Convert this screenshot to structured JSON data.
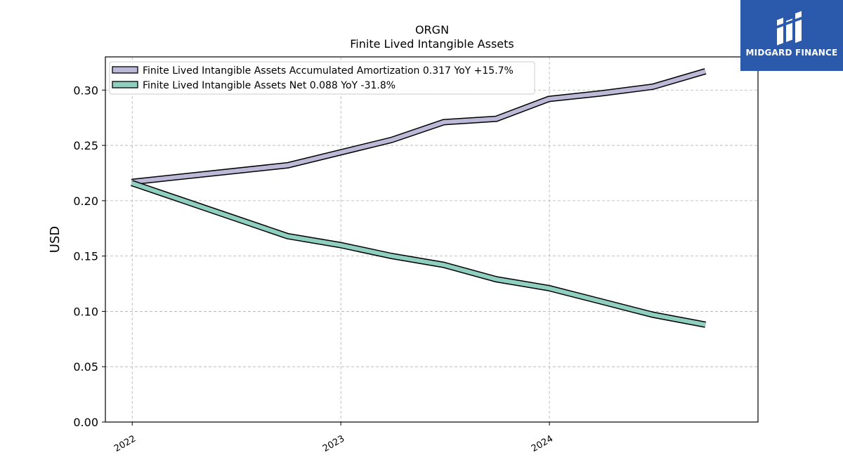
{
  "chart_data": {
    "type": "line",
    "title": "ORGN",
    "subtitle": "Finite Lived Intangible Assets",
    "ylabel": "USD",
    "xlabel": "",
    "ylim": [
      0,
      0.33
    ],
    "yticks": [
      0.0,
      0.05,
      0.1,
      0.15,
      0.2,
      0.25,
      0.3
    ],
    "ytick_labels": [
      "0.00",
      "0.05",
      "0.10",
      "0.15",
      "0.20",
      "0.25",
      "0.30"
    ],
    "xlim": [
      "2021-11-15",
      "2024-12-31"
    ],
    "xticks": [
      "2022-01-01",
      "2023-01-01",
      "2024-01-01"
    ],
    "xtick_labels": [
      "2022",
      "2023",
      "2024"
    ],
    "grid": true,
    "legend_position": "top-left",
    "series": [
      {
        "name": "Finite Lived Intangible Assets Accumulated Amortization",
        "legend_label": "Finite Lived Intangible Assets Accumulated Amortization  0.317 YoY +15.7%",
        "color": "#bcb8d8",
        "points": [
          {
            "x": "2021-12-31",
            "y": 0.217
          },
          {
            "x": "2022-09-30",
            "y": 0.232
          },
          {
            "x": "2023-03-31",
            "y": 0.255
          },
          {
            "x": "2023-06-30",
            "y": 0.271
          },
          {
            "x": "2023-09-30",
            "y": 0.274
          },
          {
            "x": "2023-12-31",
            "y": 0.292
          },
          {
            "x": "2024-03-31",
            "y": 0.297
          },
          {
            "x": "2024-06-30",
            "y": 0.303
          },
          {
            "x": "2024-09-30",
            "y": 0.317
          }
        ]
      },
      {
        "name": "Finite Lived Intangible Assets Net",
        "legend_label": "Finite Lived Intangible Assets Net  0.088 YoY -31.8%",
        "color": "#8ecfc0",
        "points": [
          {
            "x": "2021-12-31",
            "y": 0.216
          },
          {
            "x": "2022-09-30",
            "y": 0.168
          },
          {
            "x": "2022-12-31",
            "y": 0.16
          },
          {
            "x": "2023-03-31",
            "y": 0.15
          },
          {
            "x": "2023-06-30",
            "y": 0.142
          },
          {
            "x": "2023-09-30",
            "y": 0.129
          },
          {
            "x": "2023-12-31",
            "y": 0.121
          },
          {
            "x": "2024-03-31",
            "y": 0.109
          },
          {
            "x": "2024-06-30",
            "y": 0.097
          },
          {
            "x": "2024-09-30",
            "y": 0.088
          }
        ]
      }
    ]
  },
  "logo": {
    "text": "MIDGARD FINANCE",
    "icon": "midgard-logo-icon",
    "background": "#2b5aad"
  }
}
